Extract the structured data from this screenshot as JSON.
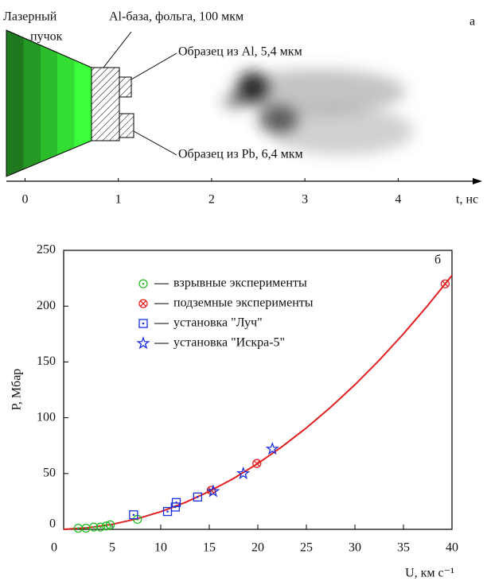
{
  "chart_data": [
    {
      "type": "schematic",
      "panel_label": "а",
      "beam_label": [
        "Лазерный",
        "пучок"
      ],
      "base_label": "Al-база, фольга, 100 мкм",
      "al_label": "Образец из Al, 5,4 мкм",
      "pb_label": "Образец из Pb, 6,4 мкм",
      "x_label": "t, нс",
      "xlim": [
        -0.2,
        4.85
      ],
      "xticks": [
        0,
        1,
        2,
        3,
        4
      ]
    },
    {
      "type": "scatter",
      "panel_label": "б",
      "x_label": "U, км с⁻¹",
      "y_label": "P, Мбар",
      "xlim": [
        0,
        40
      ],
      "ylim": [
        0,
        250
      ],
      "xticks": [
        0,
        5,
        10,
        15,
        20,
        25,
        30,
        35,
        40
      ],
      "yticks": [
        0,
        50,
        100,
        150,
        200,
        250
      ],
      "series": [
        {
          "name": "взрывные эксперименты",
          "color": "#22bb22",
          "marker": "circle-dot",
          "x": [
            1.5,
            2.3,
            3.1,
            3.8,
            4.4,
            4.8,
            7.6
          ],
          "values": [
            1,
            1,
            2,
            2,
            3,
            4,
            9
          ]
        },
        {
          "name": "подземные эксперименты",
          "color": "#e02020",
          "marker": "circle-x",
          "x": [
            15.2,
            19.9,
            39.3
          ],
          "values": [
            35,
            59,
            220
          ]
        },
        {
          "name": "установка \"Луч\"",
          "color": "#1a2ee0",
          "marker": "square-dot",
          "x": [
            7.2,
            10.7,
            11.5,
            11.6,
            13.8
          ],
          "values": [
            13,
            16,
            20,
            24,
            29
          ]
        },
        {
          "name": "установка \"Искра-5\"",
          "color": "#1a2ee0",
          "marker": "star",
          "x": [
            15.4,
            18.5,
            21.5
          ],
          "values": [
            34,
            50,
            72
          ]
        }
      ],
      "curve": {
        "color": "#e02020",
        "x": [
          0,
          2.5,
          5,
          7.5,
          10,
          12.5,
          15,
          17.5,
          20,
          22.5,
          25,
          27.5,
          30,
          32.5,
          35,
          37.5,
          40
        ],
        "values": [
          0,
          1.4,
          4.5,
          9.3,
          15.8,
          24.0,
          34.0,
          45.6,
          59,
          74.1,
          90.9,
          109.4,
          129.6,
          151.5,
          175.2,
          200.6,
          227.6
        ]
      }
    }
  ]
}
